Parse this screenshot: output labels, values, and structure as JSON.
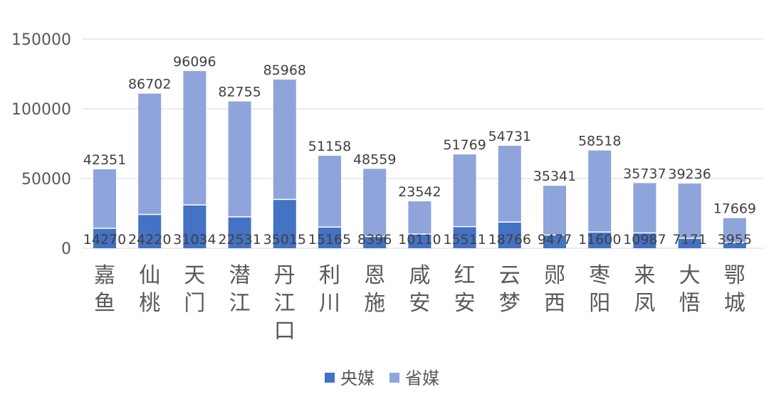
{
  "chart_data": {
    "type": "bar",
    "stacked": true,
    "categories": [
      "嘉鱼",
      "仙桃",
      "天门",
      "潜江",
      "丹江口",
      "利川",
      "恩施",
      "咸安",
      "红安",
      "云梦",
      "郧西",
      "枣阳",
      "来凤",
      "大悟",
      "鄂城"
    ],
    "series": [
      {
        "name": "央媒",
        "color": "#4472C4",
        "values": [
          14270,
          24220,
          31034,
          22531,
          35015,
          15165,
          8396,
          10110,
          15511,
          18766,
          9477,
          11600,
          10987,
          7171,
          3955
        ]
      },
      {
        "name": "省媒",
        "color": "#8FA4DA",
        "values": [
          42351,
          86702,
          96096,
          82755,
          85968,
          51158,
          48559,
          23542,
          51769,
          54731,
          35341,
          58518,
          35737,
          39236,
          17669
        ]
      }
    ],
    "yticks": [
      0,
      50000,
      100000,
      150000
    ],
    "ylim": [
      0,
      150000
    ],
    "grid": true,
    "legend_position": "bottom"
  }
}
